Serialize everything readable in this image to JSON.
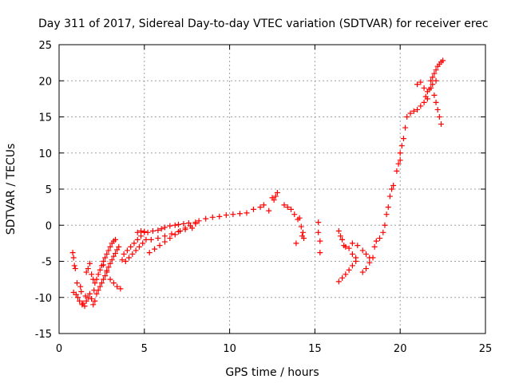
{
  "chart_data": {
    "type": "scatter",
    "title": "Day 311 of 2017, Sidereal Day-to-day VTEC variation (SDTVAR) for receiver erec",
    "xlabel": "GPS time / hours",
    "ylabel": "SDTVAR / TECUs",
    "xlim": [
      0,
      25
    ],
    "ylim": [
      -15,
      25
    ],
    "xticks": [
      0,
      5,
      10,
      15,
      20,
      25
    ],
    "yticks": [
      -15,
      -10,
      -5,
      0,
      5,
      10,
      15,
      20,
      25
    ],
    "grid": true,
    "marker": "+",
    "color": "#ff0000",
    "series": [
      {
        "name": "SDTVAR",
        "points": [
          [
            0.8,
            -3.8
          ],
          [
            0.85,
            -4.5
          ],
          [
            0.9,
            -5.6
          ],
          [
            0.95,
            -6.0
          ],
          [
            0.85,
            -9.3
          ],
          [
            1.0,
            -9.6
          ],
          [
            1.05,
            -8.0
          ],
          [
            1.1,
            -10.0
          ],
          [
            1.2,
            -10.5
          ],
          [
            1.25,
            -8.5
          ],
          [
            1.3,
            -9.2
          ],
          [
            1.35,
            -11.0
          ],
          [
            1.4,
            -10.8
          ],
          [
            1.5,
            -11.2
          ],
          [
            1.55,
            -9.8
          ],
          [
            1.6,
            -10.5
          ],
          [
            1.7,
            -10.0
          ],
          [
            1.8,
            -9.5
          ],
          [
            1.9,
            -10.2
          ],
          [
            2.0,
            -11.0
          ],
          [
            2.05,
            -9.0
          ],
          [
            2.1,
            -10.5
          ],
          [
            1.6,
            -6.5
          ],
          [
            1.7,
            -6.0
          ],
          [
            1.8,
            -5.3
          ],
          [
            1.9,
            -6.8
          ],
          [
            2.0,
            -7.5
          ],
          [
            2.1,
            -8.0
          ],
          [
            2.2,
            -7.5
          ],
          [
            2.3,
            -6.8
          ],
          [
            2.4,
            -6.2
          ],
          [
            2.5,
            -5.6
          ],
          [
            2.6,
            -5.0
          ],
          [
            2.7,
            -4.5
          ],
          [
            2.8,
            -4.0
          ],
          [
            2.9,
            -3.5
          ],
          [
            3.0,
            -3.0
          ],
          [
            3.1,
            -2.5
          ],
          [
            3.2,
            -2.2
          ],
          [
            3.3,
            -2.0
          ],
          [
            2.2,
            -9.5
          ],
          [
            2.3,
            -9.0
          ],
          [
            2.4,
            -8.5
          ],
          [
            2.5,
            -8.0
          ],
          [
            2.6,
            -7.5
          ],
          [
            2.7,
            -7.0
          ],
          [
            2.8,
            -6.3
          ],
          [
            2.9,
            -5.8
          ],
          [
            3.0,
            -5.3
          ],
          [
            3.1,
            -4.8
          ],
          [
            3.2,
            -4.3
          ],
          [
            3.3,
            -3.9
          ],
          [
            3.4,
            -3.4
          ],
          [
            3.5,
            -3.0
          ],
          [
            2.6,
            -5.5
          ],
          [
            2.8,
            -6.5
          ],
          [
            3.0,
            -7.5
          ],
          [
            3.2,
            -8.0
          ],
          [
            3.4,
            -8.5
          ],
          [
            3.6,
            -8.8
          ],
          [
            3.7,
            -4.8
          ],
          [
            3.8,
            -4.0
          ],
          [
            4.0,
            -3.5
          ],
          [
            4.2,
            -3.0
          ],
          [
            4.4,
            -2.5
          ],
          [
            4.6,
            -2.0
          ],
          [
            4.8,
            -1.5
          ],
          [
            5.0,
            -1.0
          ],
          [
            3.9,
            -5.0
          ],
          [
            4.1,
            -4.5
          ],
          [
            4.3,
            -4.0
          ],
          [
            4.5,
            -3.5
          ],
          [
            4.7,
            -3.0
          ],
          [
            4.9,
            -2.5
          ],
          [
            5.1,
            -2.0
          ],
          [
            4.6,
            -1.0
          ],
          [
            4.8,
            -0.8
          ],
          [
            5.0,
            -0.9
          ],
          [
            5.2,
            -1.0
          ],
          [
            5.5,
            -0.8
          ],
          [
            5.8,
            -0.7
          ],
          [
            6.0,
            -0.5
          ],
          [
            6.2,
            -0.3
          ],
          [
            6.5,
            -0.1
          ],
          [
            6.8,
            0.0
          ],
          [
            7.0,
            0.1
          ],
          [
            7.3,
            0.2
          ],
          [
            7.6,
            0.3
          ],
          [
            8.0,
            0.4
          ],
          [
            5.3,
            -3.8
          ],
          [
            5.6,
            -3.3
          ],
          [
            5.9,
            -2.8
          ],
          [
            6.2,
            -2.3
          ],
          [
            6.5,
            -1.8
          ],
          [
            6.8,
            -1.3
          ],
          [
            7.1,
            -0.8
          ],
          [
            7.4,
            -0.4
          ],
          [
            7.7,
            -0.1
          ],
          [
            8.0,
            0.2
          ],
          [
            5.4,
            -2.0
          ],
          [
            5.8,
            -1.8
          ],
          [
            6.2,
            -1.5
          ],
          [
            6.6,
            -1.2
          ],
          [
            7.0,
            -0.9
          ],
          [
            7.4,
            -0.6
          ],
          [
            7.8,
            -0.4
          ],
          [
            8.2,
            0.6
          ],
          [
            8.6,
            0.9
          ],
          [
            9.0,
            1.1
          ],
          [
            9.4,
            1.2
          ],
          [
            9.8,
            1.4
          ],
          [
            10.2,
            1.5
          ],
          [
            10.6,
            1.6
          ],
          [
            11.0,
            1.7
          ],
          [
            11.4,
            2.2
          ],
          [
            11.8,
            2.5
          ],
          [
            12.0,
            2.8
          ],
          [
            12.3,
            2.0
          ],
          [
            12.6,
            3.5
          ],
          [
            12.8,
            4.5
          ],
          [
            12.5,
            3.8
          ],
          [
            12.7,
            4.0
          ],
          [
            13.2,
            2.8
          ],
          [
            13.4,
            2.5
          ],
          [
            13.6,
            2.2
          ],
          [
            13.8,
            1.5
          ],
          [
            14.0,
            0.8
          ],
          [
            14.1,
            1.0
          ],
          [
            14.2,
            -0.2
          ],
          [
            14.3,
            -1.0
          ],
          [
            14.25,
            -1.5
          ],
          [
            14.35,
            -1.8
          ],
          [
            13.9,
            -2.5
          ],
          [
            15.2,
            0.4
          ],
          [
            15.2,
            -1.0
          ],
          [
            15.3,
            -2.2
          ],
          [
            15.3,
            -3.8
          ],
          [
            16.4,
            -0.8
          ],
          [
            16.5,
            -1.5
          ],
          [
            16.6,
            -2.0
          ],
          [
            16.7,
            -2.8
          ],
          [
            16.8,
            -3.0
          ],
          [
            17.0,
            -3.2
          ],
          [
            17.2,
            -4.0
          ],
          [
            17.4,
            -4.5
          ],
          [
            16.4,
            -7.8
          ],
          [
            16.6,
            -7.3
          ],
          [
            16.8,
            -6.8
          ],
          [
            17.0,
            -6.2
          ],
          [
            17.2,
            -5.6
          ],
          [
            17.4,
            -5.0
          ],
          [
            17.2,
            -2.5
          ],
          [
            17.5,
            -2.8
          ],
          [
            17.8,
            -3.5
          ],
          [
            18.0,
            -4.0
          ],
          [
            18.2,
            -4.5
          ],
          [
            17.8,
            -6.5
          ],
          [
            18.0,
            -6.0
          ],
          [
            18.2,
            -5.2
          ],
          [
            18.4,
            -4.5
          ],
          [
            18.5,
            -3.0
          ],
          [
            18.6,
            -2.2
          ],
          [
            18.8,
            -1.8
          ],
          [
            19.0,
            -1.0
          ],
          [
            19.1,
            0.0
          ],
          [
            19.2,
            1.5
          ],
          [
            19.3,
            2.5
          ],
          [
            19.4,
            4.0
          ],
          [
            19.5,
            5.0
          ],
          [
            19.6,
            5.5
          ],
          [
            19.8,
            7.5
          ],
          [
            19.9,
            8.5
          ],
          [
            20.0,
            9.0
          ],
          [
            20.0,
            10.0
          ],
          [
            20.1,
            11.0
          ],
          [
            20.2,
            12.0
          ],
          [
            20.3,
            13.5
          ],
          [
            20.4,
            15.0
          ],
          [
            20.6,
            15.5
          ],
          [
            20.8,
            15.8
          ],
          [
            21.0,
            16.0
          ],
          [
            21.2,
            16.5
          ],
          [
            21.4,
            17.0
          ],
          [
            21.6,
            17.5
          ],
          [
            21.0,
            19.5
          ],
          [
            21.2,
            19.8
          ],
          [
            21.4,
            19.0
          ],
          [
            21.5,
            17.8
          ],
          [
            21.6,
            18.5
          ],
          [
            21.8,
            19.0
          ],
          [
            22.0,
            18.0
          ],
          [
            22.1,
            17.0
          ],
          [
            22.2,
            16.0
          ],
          [
            22.3,
            15.0
          ],
          [
            22.4,
            14.0
          ],
          [
            21.8,
            20.0
          ],
          [
            21.9,
            20.5
          ],
          [
            22.0,
            21.0
          ],
          [
            22.1,
            21.5
          ],
          [
            22.2,
            22.0
          ],
          [
            22.3,
            22.3
          ],
          [
            22.4,
            22.6
          ],
          [
            22.5,
            22.8
          ],
          [
            21.7,
            18.8
          ],
          [
            21.9,
            19.5
          ],
          [
            22.1,
            20.0
          ]
        ]
      }
    ]
  }
}
